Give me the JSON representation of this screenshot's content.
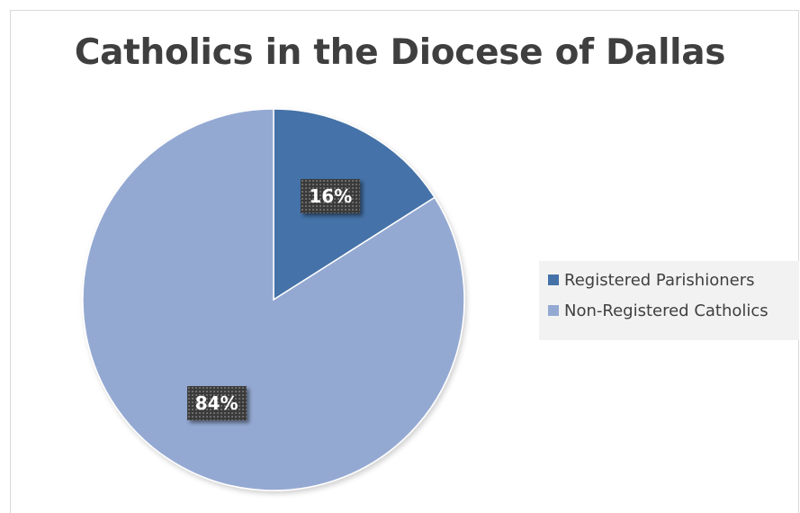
{
  "chart_data": {
    "type": "pie",
    "title": "Catholics in the Diocese of Dallas",
    "categories": [
      "Registered Parishioners",
      "Non-Registered Catholics"
    ],
    "values": [
      16,
      84
    ],
    "labels": [
      "16%",
      "84%"
    ],
    "colors": [
      "#4472a8",
      "#94a9d2"
    ],
    "legend_position": "right"
  }
}
